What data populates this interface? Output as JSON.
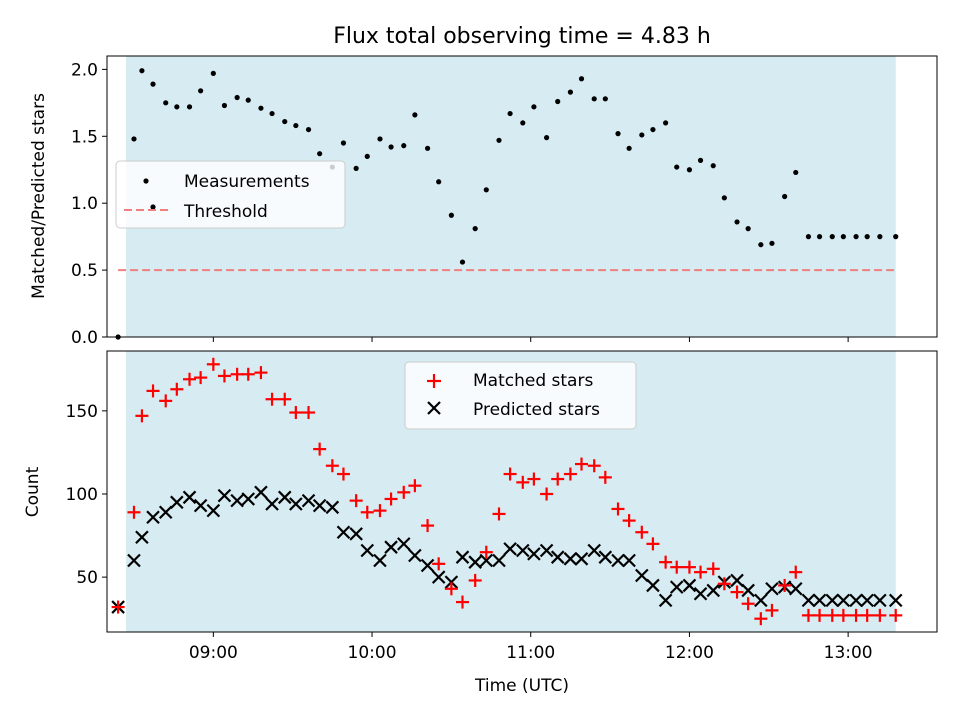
{
  "title": "Flux total observing time = 4.83 h",
  "colors": {
    "span_fill": "#add8e6",
    "measurement": "#000000",
    "threshold": "#f08080",
    "matched": "#ff0000",
    "predicted": "#000000"
  },
  "chart_data": [
    {
      "type": "scatter",
      "panel": "top",
      "xlabel": "",
      "ylabel": "Matched/Predicted stars",
      "xlim": [
        8.33,
        13.56
      ],
      "ylim": [
        0,
        2.1
      ],
      "yticks": [
        0.0,
        0.5,
        1.0,
        1.5,
        2.0
      ],
      "ytick_labels": [
        "0.0",
        "0.5",
        "1.0",
        "1.5",
        "2.0"
      ],
      "xticks": [
        9,
        10,
        11,
        12,
        13
      ],
      "span": [
        8.45,
        13.3
      ],
      "legend": {
        "placement": "center-left",
        "measurements_label": "Measurements",
        "threshold_label": "Threshold"
      },
      "threshold": {
        "y": 0.5,
        "x": [
          8.4,
          13.3
        ]
      },
      "series": [
        {
          "name": "Measurements",
          "x": [
            8.4,
            8.5,
            8.55,
            8.62,
            8.7,
            8.77,
            8.85,
            8.92,
            9.0,
            9.07,
            9.15,
            9.22,
            9.3,
            9.37,
            9.45,
            9.52,
            9.6,
            9.67,
            9.75,
            9.82,
            9.9,
            9.97,
            10.05,
            10.12,
            10.2,
            10.27,
            10.35,
            10.42,
            10.5,
            10.57,
            10.65,
            10.72,
            10.8,
            10.87,
            10.95,
            11.02,
            11.1,
            11.17,
            11.25,
            11.32,
            11.4,
            11.47,
            11.55,
            11.62,
            11.7,
            11.77,
            11.85,
            11.92,
            12.0,
            12.07,
            12.15,
            12.22,
            12.3,
            12.37,
            12.45,
            12.52,
            12.6,
            12.67,
            12.75,
            12.82,
            12.9,
            12.97,
            13.05,
            13.12,
            13.2,
            13.3
          ],
          "y": [
            0.0,
            1.48,
            1.99,
            1.89,
            1.75,
            1.72,
            1.72,
            1.84,
            1.97,
            1.73,
            1.79,
            1.77,
            1.71,
            1.67,
            1.61,
            1.58,
            1.55,
            1.37,
            1.27,
            1.45,
            1.26,
            1.35,
            1.48,
            1.42,
            1.43,
            1.66,
            1.41,
            1.16,
            0.91,
            0.56,
            0.81,
            1.1,
            1.47,
            1.67,
            1.6,
            1.72,
            1.49,
            1.76,
            1.83,
            1.93,
            1.78,
            1.78,
            1.52,
            1.41,
            1.51,
            1.55,
            1.6,
            1.27,
            1.25,
            1.32,
            1.28,
            1.04,
            0.86,
            0.81,
            0.69,
            0.7,
            1.05,
            1.23,
            0.75,
            0.75,
            0.75,
            0.75,
            0.75,
            0.75,
            0.75,
            0.75
          ]
        }
      ]
    },
    {
      "type": "scatter",
      "panel": "bottom",
      "xlabel": "Time (UTC)",
      "ylabel": "Count",
      "xlim": [
        8.33,
        13.56
      ],
      "ylim": [
        17,
        186
      ],
      "yticks": [
        50,
        100,
        150
      ],
      "ytick_labels": [
        "50",
        "100",
        "150"
      ],
      "xticks": [
        9,
        10,
        11,
        12,
        13
      ],
      "xtick_labels": [
        "09:00",
        "10:00",
        "11:00",
        "12:00",
        "13:00"
      ],
      "span": [
        8.45,
        13.3
      ],
      "legend": {
        "placement": "upper-center",
        "matched_label": "Matched stars",
        "predicted_label": "Predicted stars"
      },
      "series": [
        {
          "name": "Matched stars",
          "x": [
            8.4,
            8.5,
            8.55,
            8.62,
            8.7,
            8.77,
            8.85,
            8.92,
            9.0,
            9.07,
            9.15,
            9.22,
            9.3,
            9.37,
            9.45,
            9.52,
            9.6,
            9.67,
            9.75,
            9.82,
            9.9,
            9.97,
            10.05,
            10.12,
            10.2,
            10.27,
            10.35,
            10.42,
            10.5,
            10.57,
            10.65,
            10.72,
            10.8,
            10.87,
            10.95,
            11.02,
            11.1,
            11.17,
            11.25,
            11.32,
            11.4,
            11.47,
            11.55,
            11.62,
            11.7,
            11.77,
            11.85,
            11.92,
            12.0,
            12.07,
            12.15,
            12.22,
            12.3,
            12.37,
            12.45,
            12.52,
            12.6,
            12.67,
            12.75,
            12.82,
            12.9,
            12.97,
            13.05,
            13.12,
            13.2,
            13.3
          ],
          "y": [
            32,
            89,
            147,
            162,
            156,
            163,
            169,
            170,
            178,
            171,
            172,
            172,
            173,
            157,
            157,
            149,
            149,
            127,
            117,
            112,
            96,
            89,
            90,
            97,
            101,
            105,
            81,
            58,
            43,
            35,
            48,
            65,
            88,
            112,
            107,
            109,
            100,
            109,
            112,
            118,
            117,
            110,
            91,
            84,
            77,
            70,
            59,
            56,
            56,
            53,
            55,
            46,
            41,
            34,
            25,
            30,
            45,
            53,
            27,
            27,
            27,
            27,
            27,
            27,
            27,
            27
          ]
        },
        {
          "name": "Predicted stars",
          "x": [
            8.4,
            8.5,
            8.55,
            8.62,
            8.7,
            8.77,
            8.85,
            8.92,
            9.0,
            9.07,
            9.15,
            9.22,
            9.3,
            9.37,
            9.45,
            9.52,
            9.6,
            9.67,
            9.75,
            9.82,
            9.9,
            9.97,
            10.05,
            10.12,
            10.2,
            10.27,
            10.35,
            10.42,
            10.5,
            10.57,
            10.65,
            10.72,
            10.8,
            10.87,
            10.95,
            11.02,
            11.1,
            11.17,
            11.25,
            11.32,
            11.4,
            11.47,
            11.55,
            11.62,
            11.7,
            11.77,
            11.85,
            11.92,
            12.0,
            12.07,
            12.15,
            12.22,
            12.3,
            12.37,
            12.45,
            12.52,
            12.6,
            12.67,
            12.75,
            12.82,
            12.9,
            12.97,
            13.05,
            13.12,
            13.2,
            13.3
          ],
          "y": [
            32,
            60,
            74,
            86,
            89,
            95,
            98,
            93,
            90,
            99,
            96,
            97,
            101,
            94,
            98,
            94,
            96,
            93,
            92,
            77,
            76,
            66,
            60,
            68,
            70,
            63,
            57,
            50,
            47,
            62,
            59,
            60,
            60,
            67,
            66,
            64,
            66,
            62,
            61,
            61,
            66,
            62,
            60,
            60,
            51,
            45,
            36,
            44,
            45,
            40,
            42,
            47,
            48,
            42,
            36,
            43,
            44,
            43,
            36,
            36,
            36,
            36,
            36,
            36,
            36,
            36
          ]
        }
      ]
    }
  ]
}
